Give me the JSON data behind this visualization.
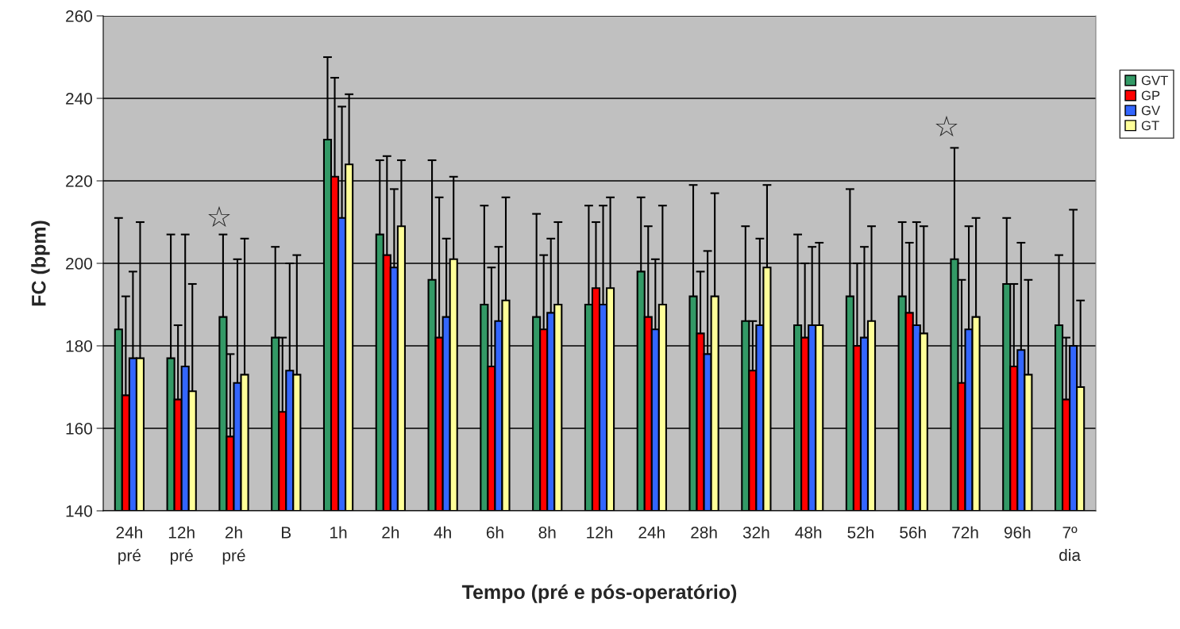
{
  "chart_data": {
    "type": "bar",
    "xlabel": "Tempo (pré e pós-operatório)",
    "ylabel": "FC (bpm)",
    "categories": [
      "24h\npré",
      "12h\npré",
      "2h\npré",
      "B",
      "1h",
      "2h",
      "4h",
      "6h",
      "8h",
      "12h",
      "24h",
      "28h",
      "32h",
      "48h",
      "52h",
      "56h",
      "72h",
      "96h",
      "7º\ndia"
    ],
    "series": [
      {
        "name": "GVT",
        "color": "#339966",
        "values": [
          184,
          177,
          187,
          182,
          230,
          207,
          196,
          190,
          187,
          190,
          198,
          192,
          186,
          185,
          192,
          192,
          201,
          195,
          185
        ],
        "errors": [
          [
            184,
            211
          ],
          [
            177,
            207
          ],
          [
            187,
            207
          ],
          [
            182,
            204
          ],
          [
            230,
            250
          ],
          [
            207,
            225
          ],
          [
            196,
            225
          ],
          [
            190,
            214
          ],
          [
            187,
            212
          ],
          [
            190,
            214
          ],
          [
            198,
            216
          ],
          [
            192,
            219
          ],
          [
            186,
            209
          ],
          [
            185,
            207
          ],
          [
            192,
            218
          ],
          [
            192,
            210
          ],
          [
            201,
            228
          ],
          [
            195,
            211
          ],
          [
            185,
            202
          ]
        ]
      },
      {
        "name": "GP",
        "color": "#ff0000",
        "values": [
          168,
          167,
          158,
          164,
          221,
          202,
          182,
          175,
          184,
          194,
          187,
          183,
          174,
          182,
          180,
          188,
          171,
          175,
          167
        ],
        "errors": [
          [
            168,
            192
          ],
          [
            167,
            185
          ],
          [
            158,
            178
          ],
          [
            164,
            182
          ],
          [
            221,
            245
          ],
          [
            202,
            226
          ],
          [
            182,
            216
          ],
          [
            175,
            199
          ],
          [
            184,
            202
          ],
          [
            194,
            210
          ],
          [
            187,
            209
          ],
          [
            183,
            198
          ],
          [
            174,
            186
          ],
          [
            182,
            200
          ],
          [
            180,
            200
          ],
          [
            188,
            205
          ],
          [
            171,
            196
          ],
          [
            175,
            195
          ],
          [
            167,
            182
          ]
        ]
      },
      {
        "name": "GV",
        "color": "#3366ff",
        "values": [
          177,
          175,
          171,
          174,
          211,
          199,
          187,
          186,
          188,
          190,
          184,
          178,
          185,
          185,
          182,
          185,
          184,
          179,
          180
        ],
        "errors": [
          [
            177,
            198
          ],
          [
            175,
            207
          ],
          [
            171,
            201
          ],
          [
            174,
            200
          ],
          [
            211,
            238
          ],
          [
            199,
            218
          ],
          [
            187,
            206
          ],
          [
            186,
            204
          ],
          [
            188,
            206
          ],
          [
            190,
            214
          ],
          [
            184,
            201
          ],
          [
            178,
            203
          ],
          [
            185,
            206
          ],
          [
            185,
            204
          ],
          [
            182,
            204
          ],
          [
            185,
            210
          ],
          [
            184,
            209
          ],
          [
            179,
            205
          ],
          [
            180,
            213
          ]
        ]
      },
      {
        "name": "GT",
        "color": "#ffff99",
        "values": [
          177,
          169,
          173,
          173,
          224,
          209,
          201,
          191,
          190,
          194,
          190,
          192,
          199,
          185,
          186,
          183,
          187,
          173,
          170
        ],
        "errors": [
          [
            177,
            210
          ],
          [
            169,
            195
          ],
          [
            173,
            206
          ],
          [
            173,
            202
          ],
          [
            224,
            241
          ],
          [
            209,
            225
          ],
          [
            201,
            221
          ],
          [
            191,
            216
          ],
          [
            190,
            210
          ],
          [
            194,
            216
          ],
          [
            190,
            214
          ],
          [
            192,
            217
          ],
          [
            199,
            219
          ],
          [
            185,
            205
          ],
          [
            186,
            209
          ],
          [
            183,
            209
          ],
          [
            187,
            211
          ],
          [
            173,
            196
          ],
          [
            170,
            191
          ]
        ]
      }
    ],
    "ylim": [
      140,
      260
    ],
    "yticks": [
      140,
      160,
      180,
      200,
      220,
      240,
      260
    ],
    "grid": "y",
    "legend": "right",
    "annotations": [
      "☆",
      "☆"
    ]
  }
}
